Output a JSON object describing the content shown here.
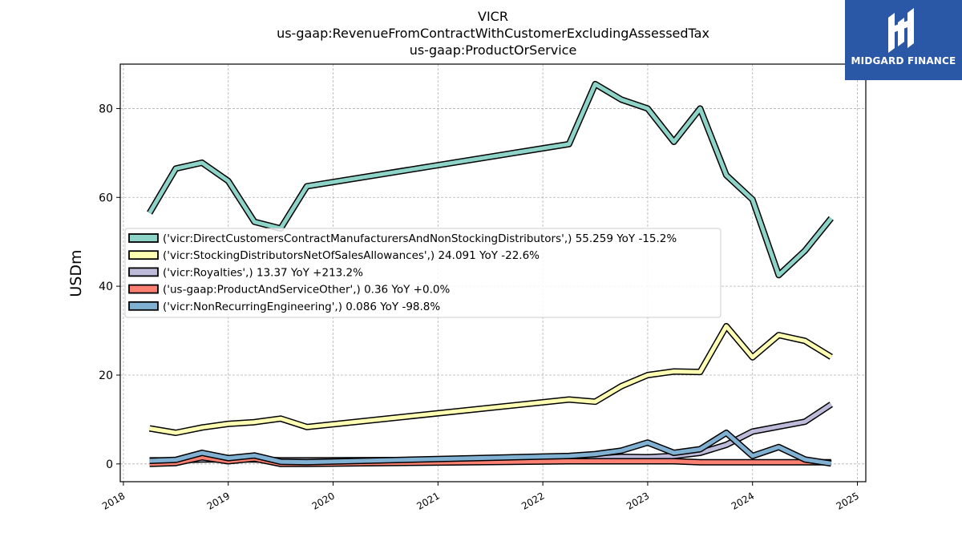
{
  "title_lines": [
    "VICR",
    "us-gaap:RevenueFromContractWithCustomerExcludingAssessedTax",
    "us-gaap:ProductOrService"
  ],
  "logo": {
    "text": "MIDGARD FINANCE",
    "background": "#2b57a7"
  },
  "chart_data": {
    "type": "line",
    "ylabel": "USDm",
    "xlabel": "",
    "ylim": [
      -4,
      90
    ],
    "xlim": [
      2017.97,
      2025.08
    ],
    "yticks": [
      0,
      20,
      40,
      60,
      80
    ],
    "xticks": [
      "2018",
      "2019",
      "2020",
      "2021",
      "2022",
      "2023",
      "2024",
      "2025"
    ],
    "grid": true,
    "legend_position": "center-left",
    "series": [
      {
        "name": "('vicr:DirectCustomersContractManufacturersAndNonStockingDistributors',) 55.259 YoY -15.2%",
        "color": "#8dd3c7",
        "points": [
          [
            2018.25,
            56.5
          ],
          [
            2018.5,
            66.5
          ],
          [
            2018.75,
            67.8
          ],
          [
            2019.0,
            63.7
          ],
          [
            2019.25,
            54.5
          ],
          [
            2019.5,
            53.0
          ],
          [
            2019.75,
            62.5
          ],
          [
            2022.25,
            72.0
          ],
          [
            2022.5,
            85.5
          ],
          [
            2022.75,
            82.0
          ],
          [
            2023.0,
            80.0
          ],
          [
            2023.25,
            72.5
          ],
          [
            2023.5,
            80.0
          ],
          [
            2023.75,
            65.0
          ],
          [
            2024.0,
            59.5
          ],
          [
            2024.25,
            42.5
          ],
          [
            2024.5,
            48.0
          ],
          [
            2024.75,
            55.3
          ]
        ]
      },
      {
        "name": "('vicr:StockingDistributorsNetOfSalesAllowances',) 24.091 YoY -22.6%",
        "color": "#ffffb3",
        "points": [
          [
            2018.25,
            8.0
          ],
          [
            2018.5,
            7.0
          ],
          [
            2018.75,
            8.2
          ],
          [
            2019.0,
            9.0
          ],
          [
            2019.25,
            9.4
          ],
          [
            2019.5,
            10.2
          ],
          [
            2019.75,
            8.3
          ],
          [
            2022.25,
            14.5
          ],
          [
            2022.5,
            14.0
          ],
          [
            2022.75,
            17.5
          ],
          [
            2023.0,
            20.0
          ],
          [
            2023.25,
            20.8
          ],
          [
            2023.5,
            20.7
          ],
          [
            2023.75,
            31.0
          ],
          [
            2024.0,
            24.0
          ],
          [
            2024.25,
            29.0
          ],
          [
            2024.5,
            27.7
          ],
          [
            2024.75,
            24.1
          ]
        ]
      },
      {
        "name": "('vicr:Royalties',) 13.37 YoY +213.2%",
        "color": "#bebada",
        "points": [
          [
            2018.25,
            0.8
          ],
          [
            2018.5,
            0.8
          ],
          [
            2018.75,
            1.0
          ],
          [
            2019.0,
            1.0
          ],
          [
            2019.25,
            1.0
          ],
          [
            2019.5,
            0.8
          ],
          [
            2019.75,
            0.8
          ],
          [
            2022.25,
            1.0
          ],
          [
            2022.5,
            1.2
          ],
          [
            2022.75,
            1.6
          ],
          [
            2023.0,
            1.5
          ],
          [
            2023.25,
            1.8
          ],
          [
            2023.5,
            2.5
          ],
          [
            2023.75,
            4.3
          ],
          [
            2024.0,
            7.3
          ],
          [
            2024.25,
            8.4
          ],
          [
            2024.5,
            9.5
          ],
          [
            2024.75,
            13.4
          ]
        ]
      },
      {
        "name": "('us-gaap:ProductAndServiceOther',) 0.36 YoY +0.0%",
        "color": "#fb8072",
        "points": [
          [
            2018.25,
            0.0
          ],
          [
            2018.5,
            0.2
          ],
          [
            2018.75,
            1.5
          ],
          [
            2019.0,
            0.6
          ],
          [
            2019.25,
            1.2
          ],
          [
            2019.5,
            0.0
          ],
          [
            2019.75,
            0.0
          ],
          [
            2022.25,
            0.6
          ],
          [
            2022.5,
            0.6
          ],
          [
            2022.75,
            0.6
          ],
          [
            2023.0,
            0.6
          ],
          [
            2023.25,
            0.6
          ],
          [
            2023.5,
            0.36
          ],
          [
            2023.75,
            0.36
          ],
          [
            2024.0,
            0.36
          ],
          [
            2024.25,
            0.36
          ],
          [
            2024.5,
            0.36
          ],
          [
            2024.75,
            0.36
          ]
        ]
      },
      {
        "name": "('vicr:NonRecurringEngineering',) 0.086 YoY -98.8%",
        "color": "#80b1d3",
        "points": [
          [
            2018.25,
            0.7
          ],
          [
            2018.5,
            0.9
          ],
          [
            2018.75,
            2.5
          ],
          [
            2019.0,
            1.3
          ],
          [
            2019.25,
            1.9
          ],
          [
            2019.5,
            0.5
          ],
          [
            2019.75,
            0.4
          ],
          [
            2022.25,
            1.8
          ],
          [
            2022.5,
            2.2
          ],
          [
            2022.75,
            3.0
          ],
          [
            2023.0,
            4.8
          ],
          [
            2023.25,
            2.5
          ],
          [
            2023.5,
            3.3
          ],
          [
            2023.75,
            7.0
          ],
          [
            2024.0,
            1.8
          ],
          [
            2024.25,
            3.8
          ],
          [
            2024.5,
            1.0
          ],
          [
            2024.75,
            0.09
          ]
        ]
      }
    ]
  }
}
